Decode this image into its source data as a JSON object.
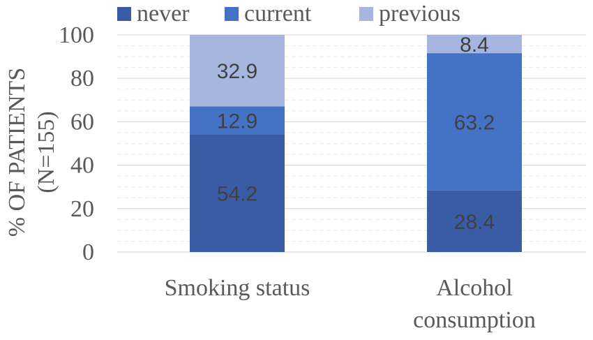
{
  "chart_data": {
    "type": "bar",
    "stacked": true,
    "categories": [
      [
        "Smoking status"
      ],
      [
        "Alcohol",
        "consumption"
      ]
    ],
    "series": [
      {
        "name": "never",
        "color": "#3a5ca5",
        "values": [
          54.2,
          28.4
        ]
      },
      {
        "name": "current",
        "color": "#4472c4",
        "values": [
          12.9,
          63.2
        ]
      },
      {
        "name": "previous",
        "color": "#a7b6de",
        "values": [
          32.9,
          8.4
        ]
      }
    ],
    "ylabel": [
      "% OF PATIENTS",
      "(N=155)"
    ],
    "ylim": [
      0,
      100
    ],
    "yticks": [
      0,
      20,
      40,
      60,
      80,
      100
    ],
    "grid": true,
    "legend": "top"
  }
}
